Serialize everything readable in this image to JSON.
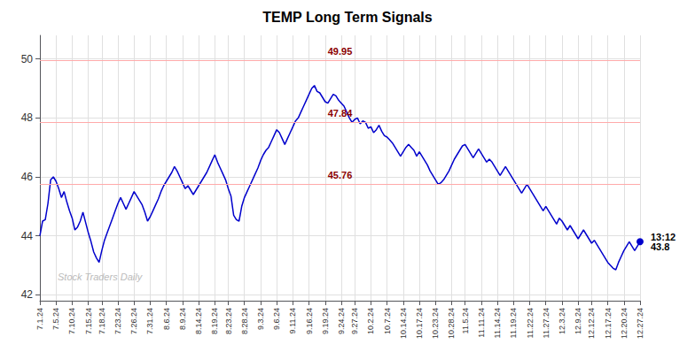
{
  "chart_data": {
    "type": "line",
    "title": "TEMP Long Term Signals",
    "categories": [
      "7.1.24",
      null,
      null,
      null,
      null,
      null,
      "7.5.24",
      null,
      null,
      null,
      null,
      null,
      "7.10.24",
      null,
      null,
      null,
      null,
      null,
      "7.15.24",
      null,
      null,
      null,
      null,
      "7.18.24",
      null,
      null,
      null,
      null,
      null,
      "7.23.24",
      null,
      null,
      null,
      null,
      null,
      "7.26.24",
      null,
      null,
      null,
      null,
      null,
      "7.31.24",
      null,
      null,
      null,
      null,
      null,
      "8.6.24",
      null,
      null,
      null,
      null,
      null,
      "8.9.24",
      null,
      null,
      null,
      null,
      null,
      "8.14.24",
      null,
      null,
      null,
      null,
      null,
      "8.19.24",
      null,
      null,
      null,
      null,
      "8.23.24",
      null,
      null,
      null,
      null,
      null,
      "8.28.24",
      null,
      null,
      null,
      null,
      null,
      "9.3.24",
      null,
      null,
      null,
      null,
      null,
      "9.6.24",
      null,
      null,
      null,
      null,
      null,
      "9.11.24",
      null,
      null,
      null,
      null,
      null,
      "9.16.24",
      null,
      null,
      null,
      null,
      null,
      "9.19.24",
      null,
      null,
      null,
      null,
      null,
      "9.24.24",
      null,
      null,
      null,
      null,
      "9.27.24",
      null,
      null,
      null,
      null,
      null,
      "10.2.24",
      null,
      null,
      null,
      null,
      null,
      "10.7.24",
      null,
      null,
      null,
      null,
      null,
      "10.14.24",
      null,
      null,
      null,
      null,
      null,
      "10.17.24",
      null,
      null,
      null,
      null,
      null,
      "10.23.24",
      null,
      null,
      null,
      null,
      null,
      "10.28.24",
      null,
      null,
      null,
      null,
      "11.5.24",
      null,
      null,
      null,
      null,
      null,
      "11.11.24",
      null,
      null,
      null,
      null,
      null,
      "11.14.24",
      null,
      null,
      null,
      null,
      null,
      "11.19.24",
      null,
      null,
      null,
      null,
      null,
      "11.22.24",
      null,
      null,
      null,
      null,
      null,
      "11.27.24",
      null,
      null,
      null,
      null,
      null,
      "12.3.24",
      null,
      null,
      null,
      null,
      null,
      "12.9.24",
      null,
      null,
      null,
      null,
      "12.12.24",
      null,
      null,
      null,
      null,
      null,
      "12.17.24",
      null,
      null,
      null,
      null,
      null,
      "12.20.24",
      null,
      null,
      null,
      null,
      null,
      "12.27.24"
    ],
    "series": [
      {
        "color": "#0000cc",
        "values": [
          44.0,
          44.5,
          44.55,
          45.1,
          45.9,
          46.0,
          45.85,
          45.6,
          45.3,
          45.5,
          45.15,
          44.85,
          44.6,
          44.2,
          44.3,
          44.5,
          44.8,
          44.45,
          44.1,
          43.8,
          43.45,
          43.25,
          43.1,
          43.5,
          43.85,
          44.1,
          44.35,
          44.6,
          44.85,
          45.1,
          45.3,
          45.1,
          44.9,
          45.1,
          45.3,
          45.5,
          45.35,
          45.2,
          45.05,
          44.8,
          44.5,
          44.65,
          44.85,
          45.05,
          45.25,
          45.5,
          45.7,
          45.85,
          46.0,
          46.15,
          46.35,
          46.2,
          46.0,
          45.8,
          45.6,
          45.7,
          45.55,
          45.4,
          45.55,
          45.7,
          45.85,
          46.0,
          46.15,
          46.35,
          46.55,
          46.75,
          46.5,
          46.3,
          46.1,
          45.9,
          45.6,
          45.35,
          44.7,
          44.55,
          44.5,
          45.0,
          45.3,
          45.5,
          45.7,
          45.9,
          46.1,
          46.3,
          46.55,
          46.75,
          46.9,
          47.0,
          47.2,
          47.4,
          47.6,
          47.5,
          47.3,
          47.1,
          47.3,
          47.5,
          47.7,
          47.9,
          48.0,
          48.2,
          48.4,
          48.6,
          48.8,
          49.0,
          49.1,
          48.9,
          48.85,
          48.7,
          48.55,
          48.5,
          48.65,
          48.8,
          48.75,
          48.6,
          48.5,
          48.4,
          48.2,
          48.0,
          47.85,
          47.95,
          48.0,
          47.8,
          47.9,
          47.85,
          47.65,
          47.7,
          47.5,
          47.6,
          47.75,
          47.55,
          47.4,
          47.35,
          47.25,
          47.15,
          47.0,
          46.85,
          46.7,
          46.85,
          47.0,
          47.1,
          47.0,
          46.9,
          46.7,
          46.85,
          46.7,
          46.55,
          46.4,
          46.2,
          46.05,
          45.9,
          45.75,
          45.8,
          45.9,
          46.05,
          46.2,
          46.4,
          46.6,
          46.75,
          46.9,
          47.05,
          47.1,
          46.95,
          46.8,
          46.65,
          46.8,
          46.95,
          46.8,
          46.65,
          46.5,
          46.6,
          46.5,
          46.35,
          46.2,
          46.05,
          46.2,
          46.35,
          46.2,
          46.05,
          45.9,
          45.75,
          45.6,
          45.45,
          45.6,
          45.75,
          45.6,
          45.45,
          45.3,
          45.15,
          45.0,
          44.85,
          45.0,
          44.85,
          44.7,
          44.55,
          44.4,
          44.6,
          44.5,
          44.35,
          44.2,
          44.35,
          44.2,
          44.05,
          43.9,
          44.05,
          44.2,
          44.05,
          43.9,
          43.75,
          43.85,
          43.7,
          43.55,
          43.4,
          43.25,
          43.1,
          43.0,
          42.9,
          42.85,
          43.1,
          43.3,
          43.5,
          43.65,
          43.8,
          43.65,
          43.5,
          43.65,
          43.8
        ]
      }
    ],
    "ylim": [
      41.8,
      50.8
    ],
    "yticks": [
      42,
      44,
      46,
      48,
      50
    ],
    "grid": true,
    "hlines": {
      "values": [
        49.95,
        47.84,
        45.76
      ],
      "color": "#ffaaaa",
      "label_color": "#8b0000"
    },
    "last_label": "13:12\n43.8",
    "watermark": "Stock Traders Daily"
  }
}
